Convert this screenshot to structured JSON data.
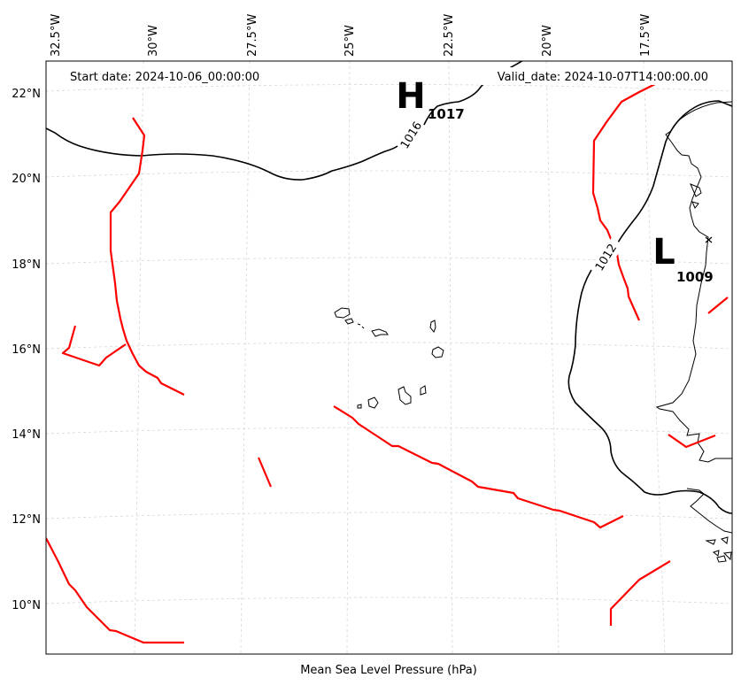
{
  "header": {
    "start_date": "Start date: 2024-10-06_00:00:00",
    "valid_date": "Valid_date: 2024-10-07T14:00:00.00"
  },
  "footer": {
    "label": "Mean Sea Level Pressure (hPa)"
  },
  "axes": {
    "longitude_ticks": [
      "32.5°W",
      "30°W",
      "27.5°W",
      "25°W",
      "22.5°W",
      "20°W",
      "17.5°W"
    ],
    "latitude_ticks": [
      "22°N",
      "20°N",
      "18°N",
      "16°N",
      "14°N",
      "12°N",
      "10°N"
    ]
  },
  "pressure_centers": [
    {
      "letter": "H",
      "value": "1017"
    },
    {
      "letter": "L",
      "value": "1009"
    }
  ],
  "contours": [
    {
      "label": "1016"
    },
    {
      "label": "1012"
    }
  ],
  "colors": {
    "fronts": "#ff0000",
    "contours": "#000000",
    "coast": "#000000",
    "grid": "#d3d3d3"
  }
}
